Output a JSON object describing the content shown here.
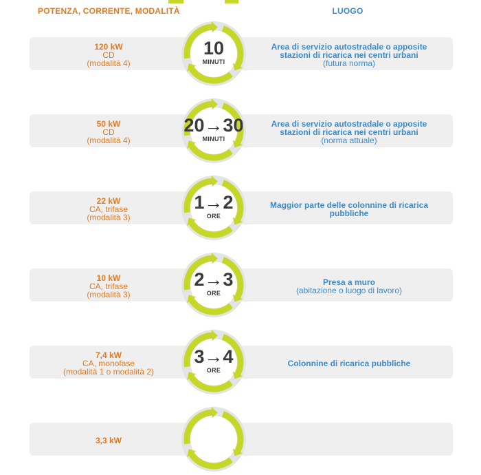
{
  "header": {
    "left_title": "POTENZA, CORRENTE, MODALITÀ",
    "right_title": "LUOGO"
  },
  "colors": {
    "orange": "#e07b23",
    "blue": "#3c8ac9",
    "green": "#c5d82a",
    "bar": "#efefef"
  },
  "rows": [
    {
      "power": "120 kW",
      "current": "CD",
      "mode": "(modalità 4)",
      "time": "10",
      "unit": "MINUTI",
      "place_main": "Area di servizio autostradale o apposite stazioni di ricarica nei centri urbani",
      "place_note": "(futura norma)"
    },
    {
      "power": "50 kW",
      "current": "CD",
      "mode": "(modalità 4)",
      "time": "20→30",
      "unit": "MINUTI",
      "place_main": "Area di servizio autostradale o apposite stazioni di ricarica nei centri urbani",
      "place_note": "(norma attuale)"
    },
    {
      "power": "22 kW",
      "current": "CA, trifase",
      "mode": "(modalità 3)",
      "time": "1→2",
      "unit": "ORE",
      "place_main": "Maggior parte delle colonnine di ricarica pubbliche",
      "place_note": ""
    },
    {
      "power": "10 kW",
      "current": "CA, trifase",
      "mode": "(modalità 3)",
      "time": "2→3",
      "unit": "ORE",
      "place_main": "Presa a muro",
      "place_note": "(abitazione o luogo di lavoro)"
    },
    {
      "power": "7,4 kW",
      "current": "CA, monofase",
      "mode": "(modalità 1 o modalità 2)",
      "time": "3→4",
      "unit": "ORE",
      "place_main": "Colonnine di ricarica pubbliche",
      "place_note": ""
    },
    {
      "power": "3,3 kW",
      "current": "",
      "mode": "",
      "time": "",
      "unit": "",
      "place_main": "",
      "place_note": ""
    }
  ]
}
